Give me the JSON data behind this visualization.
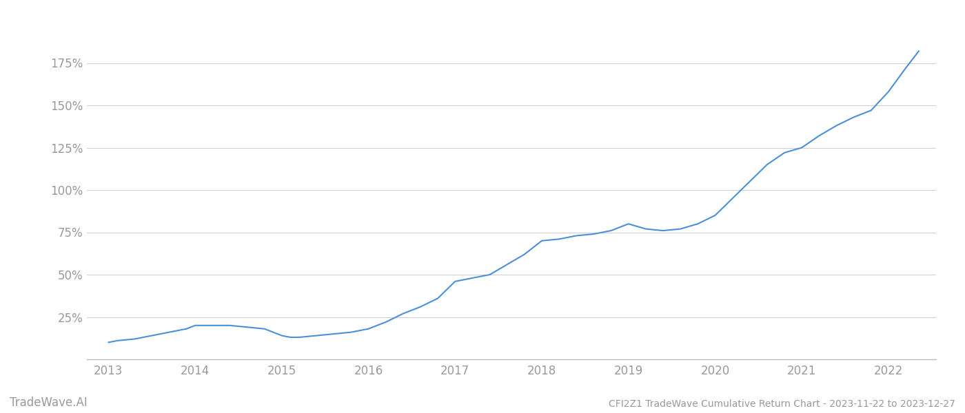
{
  "x_data": [
    2013.0,
    2013.1,
    2013.3,
    2013.5,
    2013.7,
    2013.9,
    2014.0,
    2014.2,
    2014.4,
    2014.6,
    2014.8,
    2015.0,
    2015.1,
    2015.2,
    2015.4,
    2015.6,
    2015.8,
    2016.0,
    2016.2,
    2016.4,
    2016.6,
    2016.8,
    2017.0,
    2017.2,
    2017.4,
    2017.6,
    2017.8,
    2018.0,
    2018.2,
    2018.4,
    2018.6,
    2018.8,
    2019.0,
    2019.2,
    2019.4,
    2019.6,
    2019.8,
    2020.0,
    2020.2,
    2020.4,
    2020.6,
    2020.8,
    2021.0,
    2021.2,
    2021.4,
    2021.6,
    2021.8,
    2022.0,
    2022.2,
    2022.35
  ],
  "y_data": [
    10,
    11,
    12,
    14,
    16,
    18,
    20,
    20,
    20,
    19,
    18,
    14,
    13,
    13,
    14,
    15,
    16,
    18,
    22,
    27,
    31,
    36,
    46,
    48,
    50,
    56,
    62,
    70,
    71,
    73,
    74,
    76,
    80,
    77,
    76,
    77,
    80,
    85,
    95,
    105,
    115,
    122,
    125,
    132,
    138,
    143,
    147,
    158,
    172,
    182
  ],
  "line_color": "#4a90d9",
  "background_color": "#ffffff",
  "grid_color": "#d0d0d0",
  "tick_color": "#999999",
  "title_text": "CFI2Z1 TradeWave Cumulative Return Chart - 2023-11-22 to 2023-12-27",
  "watermark_text": "TradeWave.AI",
  "yticks": [
    25,
    50,
    75,
    100,
    125,
    150,
    175
  ],
  "xticks": [
    2013,
    2014,
    2015,
    2016,
    2017,
    2018,
    2019,
    2020,
    2021,
    2022
  ],
  "ylim": [
    0,
    200
  ],
  "xlim": [
    2012.75,
    2022.55
  ]
}
